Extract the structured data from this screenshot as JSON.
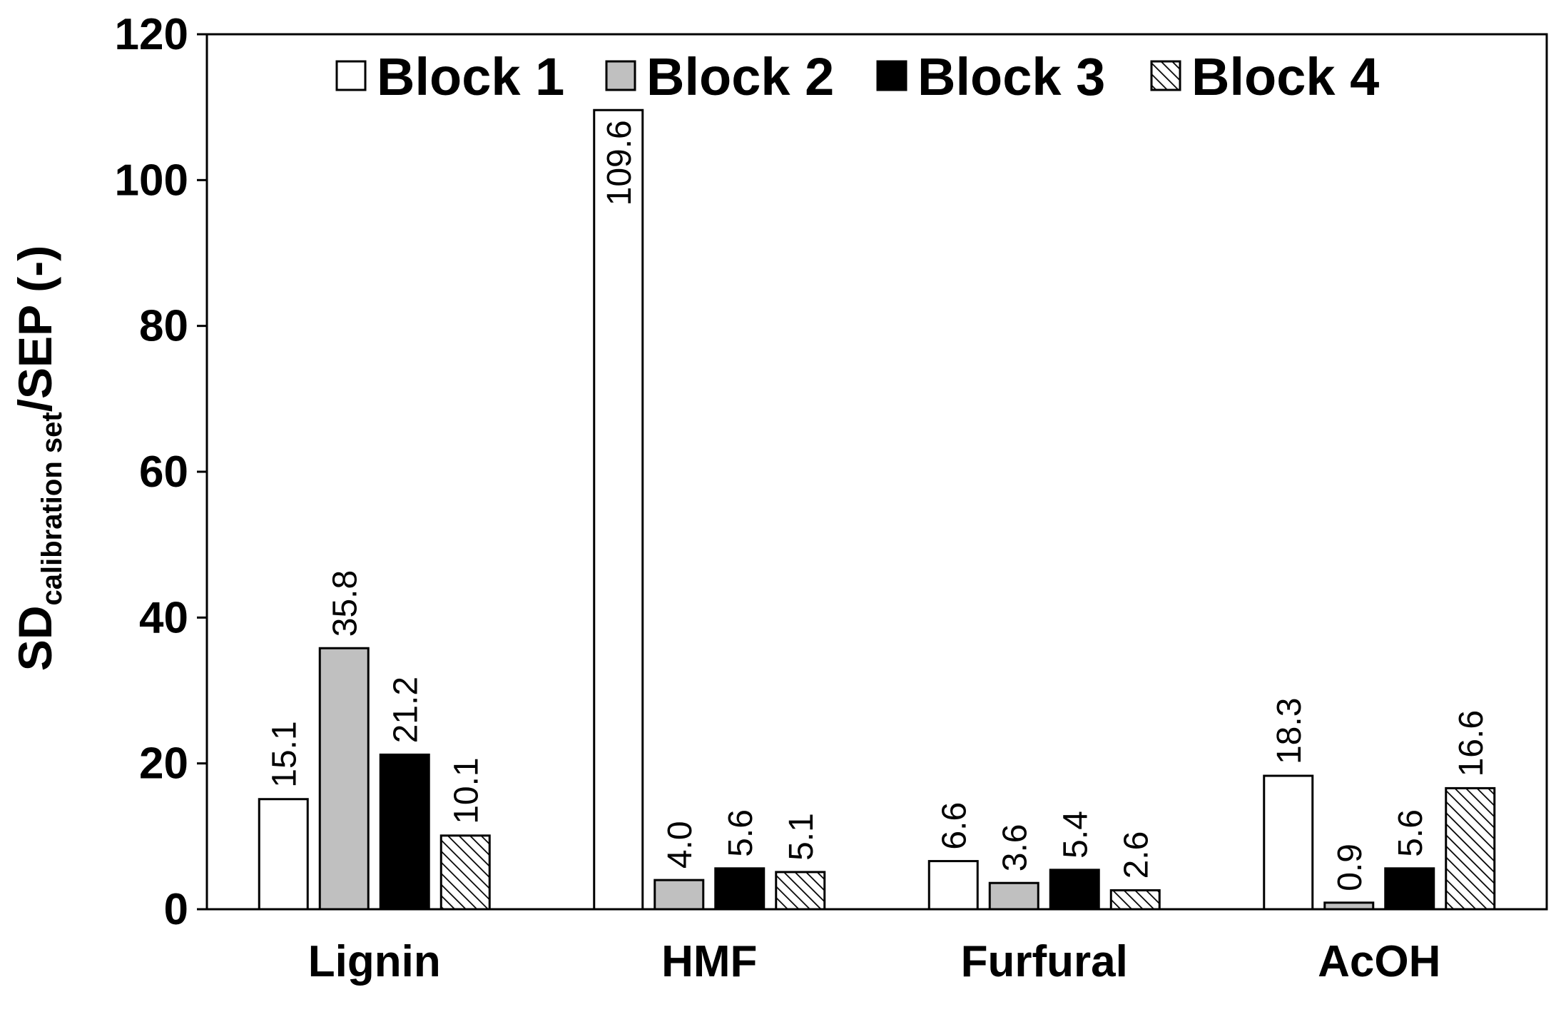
{
  "chart_data": {
    "type": "bar",
    "title": "",
    "xlabel": "",
    "ylabel": {
      "main": "SD",
      "subscript": "calibration set",
      "suffix": "/SEP (-)"
    },
    "ylim": [
      0,
      120
    ],
    "yticks": [
      0,
      20,
      40,
      60,
      80,
      100,
      120
    ],
    "categories": [
      "Lignin",
      "HMF",
      "Furfural",
      "AcOH"
    ],
    "series": [
      {
        "name": "Block 1",
        "values": [
          15.1,
          109.6,
          6.6,
          18.3
        ],
        "labels": [
          "15.1",
          "109.6",
          "6.6",
          "18.3"
        ],
        "fill": "#ffffff"
      },
      {
        "name": "Block 2",
        "values": [
          35.8,
          4.0,
          3.6,
          0.9
        ],
        "labels": [
          "35.8",
          "4.0",
          "3.6",
          "0.9"
        ],
        "fill": "#c0c0c0"
      },
      {
        "name": "Block 3",
        "values": [
          21.2,
          5.6,
          5.4,
          5.6
        ],
        "labels": [
          "21.2",
          "5.6",
          "5.4",
          "5.6"
        ],
        "fill": "#000000"
      },
      {
        "name": "Block 4",
        "values": [
          10.1,
          5.1,
          2.6,
          16.6
        ],
        "labels": [
          "10.1",
          "5.1",
          "2.6",
          "16.6"
        ],
        "fill": "hatch"
      }
    ],
    "legend_position": "top-center",
    "grid": false
  }
}
